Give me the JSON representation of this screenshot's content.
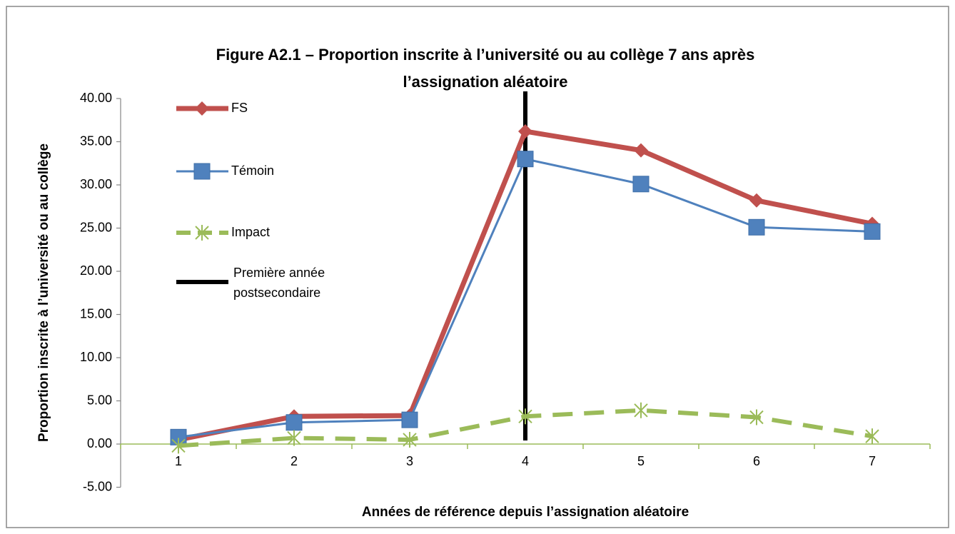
{
  "chart_data": {
    "type": "line",
    "title": [
      "Figure A2.1 – Proportion inscrite à l’université ou au collège 7 ans après",
      "l’assignation aléatoire"
    ],
    "xlabel": "Années de référence depuis l’assignation aléatoire",
    "ylabel": "Proportion inscrite à l’université ou au collège",
    "categories": [
      "1",
      "2",
      "3",
      "4",
      "5",
      "6",
      "7"
    ],
    "series": [
      {
        "name": "FS",
        "color": "#c0504d",
        "marker": "diamond",
        "values": [
          0.5,
          3.2,
          3.3,
          36.2,
          34.0,
          28.2,
          25.5
        ]
      },
      {
        "name": "Témoin",
        "color": "#4f81bd",
        "marker": "square",
        "values": [
          0.8,
          2.5,
          2.8,
          33.0,
          30.1,
          25.1,
          24.6
        ]
      },
      {
        "name": "Impact",
        "color": "#9bbb59",
        "marker": "star",
        "dashed": true,
        "values": [
          -0.2,
          0.7,
          0.5,
          3.2,
          3.9,
          3.1,
          0.9
        ]
      }
    ],
    "vline": {
      "name": "Première année postsecondaire",
      "color": "#000000",
      "at": "4"
    },
    "ylim": [
      -5,
      40
    ],
    "yticks": [
      {
        "value": -5,
        "label": "-5.00"
      },
      {
        "value": 0,
        "label": "0.00"
      },
      {
        "value": 5,
        "label": "5.00"
      },
      {
        "value": 10,
        "label": "10.00"
      },
      {
        "value": 15,
        "label": "15.00"
      },
      {
        "value": 20,
        "label": "20.00"
      },
      {
        "value": 25,
        "label": "25.00"
      },
      {
        "value": 30,
        "label": "30.00"
      },
      {
        "value": 35,
        "label": "35.00"
      },
      {
        "value": 40,
        "label": "40.00"
      }
    ],
    "legend": "upper left"
  }
}
